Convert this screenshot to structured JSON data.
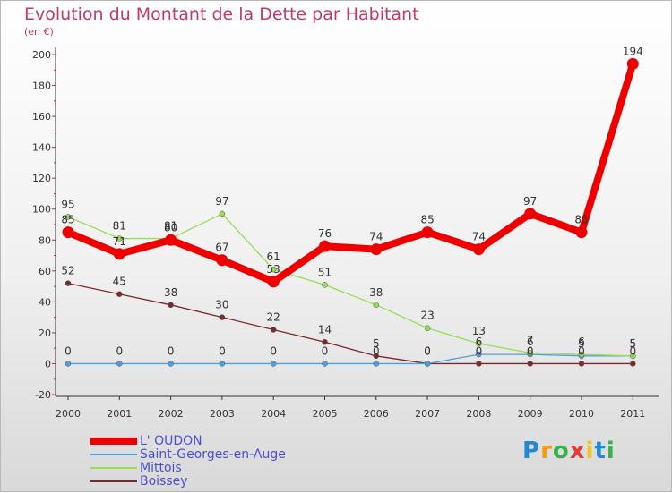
{
  "chart_data": {
    "type": "line",
    "title": "Evolution du Montant de la Dette par Habitant",
    "unit_label": "(en €)",
    "x": [
      "2000",
      "2001",
      "2002",
      "2003",
      "2004",
      "2005",
      "2006",
      "2007",
      "2008",
      "2009",
      "2010",
      "2011"
    ],
    "yticks": [
      "-20",
      "0",
      "20",
      "40",
      "60",
      "80",
      "100",
      "120",
      "140",
      "160",
      "180",
      "200"
    ],
    "ylim": [
      -20,
      200
    ],
    "grid": false,
    "legend_placement": "bottom-left",
    "series": [
      {
        "name": "L' OUDON",
        "color": "#ee0000",
        "values": [
          85,
          71,
          80,
          67,
          53,
          76,
          74,
          85,
          74,
          97,
          85,
          194
        ],
        "labels": [
          "85",
          "71",
          "80",
          "67",
          "53",
          "76",
          "74",
          "85",
          "74",
          "97",
          "85",
          "194"
        ]
      },
      {
        "name": "Saint-Georges-en-Auge",
        "color": "#4f9fe0",
        "values": [
          0,
          0,
          0,
          0,
          0,
          0,
          0,
          0,
          6,
          6,
          5,
          5
        ],
        "labels": [
          "0",
          "0",
          "0",
          "0",
          "0",
          "0",
          "0",
          "0",
          "6",
          "6",
          "5",
          "5"
        ]
      },
      {
        "name": "Mittois",
        "color": "#99dd55",
        "values": [
          95,
          81,
          81,
          97,
          61,
          51,
          38,
          23,
          13,
          7,
          6,
          5
        ],
        "labels": [
          "95",
          "81",
          "81",
          "97",
          "61",
          "51",
          "38",
          "23",
          "13",
          "7",
          "6",
          "5"
        ]
      },
      {
        "name": "Boissey",
        "color": "#7a2a2a",
        "values": [
          52,
          45,
          38,
          30,
          22,
          14,
          5,
          0,
          0,
          0,
          0,
          0
        ],
        "labels": [
          "52",
          "45",
          "38",
          "30",
          "22",
          "14",
          "5",
          "0",
          "0",
          "0",
          "0",
          "0"
        ]
      }
    ]
  },
  "brand": {
    "letters": [
      "P",
      "r",
      "o",
      "x",
      "i",
      "t",
      "i"
    ],
    "colors": [
      "#1e8ad6",
      "#f29b1d",
      "#36b14a",
      "#e23a3a",
      "#f2c31d",
      "#1e8ad6",
      "#36b14a"
    ]
  }
}
